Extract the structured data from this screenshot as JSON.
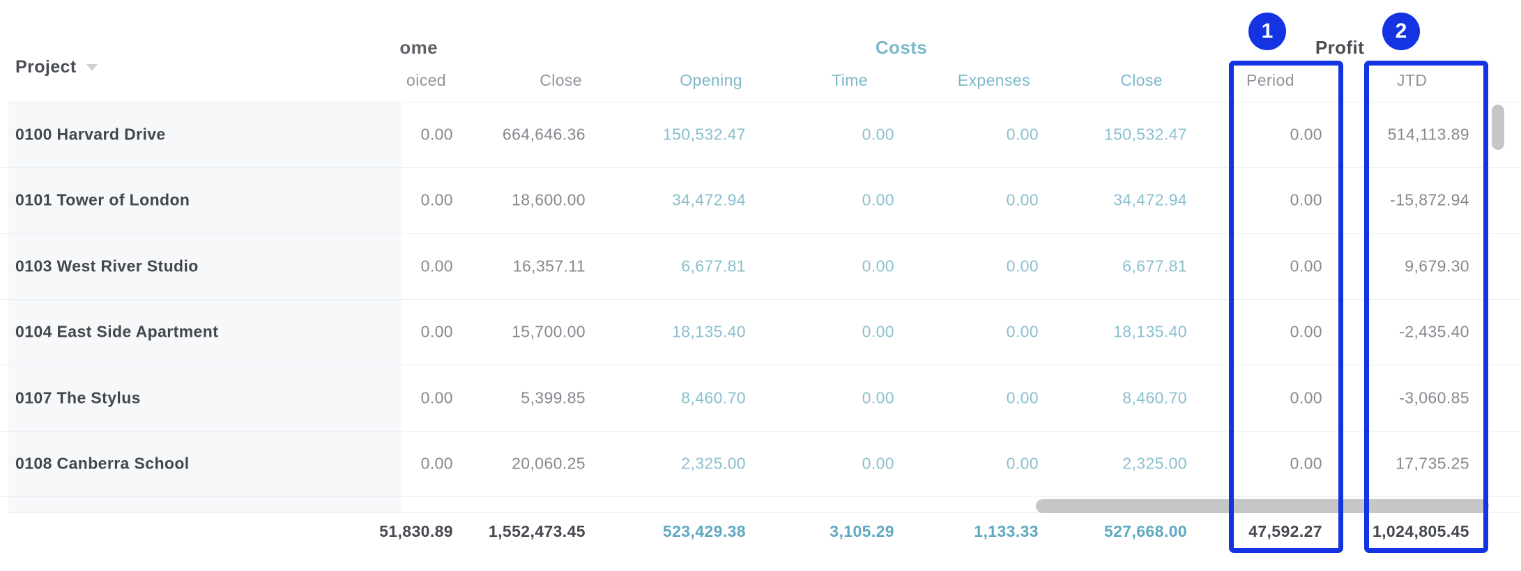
{
  "table": {
    "project_header": {
      "label": "Project",
      "filter_icon": "triangle-down"
    },
    "column_groups": {
      "income_label_clipped": "ome",
      "costs_label": "Costs",
      "profit_label": "Profit"
    },
    "sub_headers": {
      "invoiced_clipped": "oiced",
      "income_close": "Close",
      "opening": "Opening",
      "time": "Time",
      "expenses": "Expenses",
      "costs_close": "Close",
      "period": "Period",
      "jtd": "JTD"
    },
    "rows": [
      {
        "project": "0100 Harvard Drive",
        "invoiced": "0.00",
        "income_close": "664,646.36",
        "opening": "150,532.47",
        "time": "0.00",
        "expenses": "0.00",
        "costs_close": "150,532.47",
        "period": "0.00",
        "jtd": "514,113.89"
      },
      {
        "project": "0101 Tower of London",
        "invoiced": "0.00",
        "income_close": "18,600.00",
        "opening": "34,472.94",
        "time": "0.00",
        "expenses": "0.00",
        "costs_close": "34,472.94",
        "period": "0.00",
        "jtd": "-15,872.94"
      },
      {
        "project": "0103 West River Studio",
        "invoiced": "0.00",
        "income_close": "16,357.11",
        "opening": "6,677.81",
        "time": "0.00",
        "expenses": "0.00",
        "costs_close": "6,677.81",
        "period": "0.00",
        "jtd": "9,679.30"
      },
      {
        "project": "0104 East Side Apartment",
        "invoiced": "0.00",
        "income_close": "15,700.00",
        "opening": "18,135.40",
        "time": "0.00",
        "expenses": "0.00",
        "costs_close": "18,135.40",
        "period": "0.00",
        "jtd": "-2,435.40"
      },
      {
        "project": "0107 The Stylus",
        "invoiced": "0.00",
        "income_close": "5,399.85",
        "opening": "8,460.70",
        "time": "0.00",
        "expenses": "0.00",
        "costs_close": "8,460.70",
        "period": "0.00",
        "jtd": "-3,060.85"
      },
      {
        "project": "0108 Canberra School",
        "invoiced": "0.00",
        "income_close": "20,060.25",
        "opening": "2,325.00",
        "time": "0.00",
        "expenses": "0.00",
        "costs_close": "2,325.00",
        "period": "0.00",
        "jtd": "17,735.25"
      }
    ],
    "totals": {
      "invoiced": "51,830.89",
      "income_close": "1,552,473.45",
      "opening": "523,429.38",
      "time": "3,105.29",
      "expenses": "1,133.33",
      "costs_close": "527,668.00",
      "period": "47,592.27",
      "jtd": "1,024,805.45"
    }
  },
  "annotations": {
    "badge1": "1",
    "badge2": "2",
    "highlighted_columns": [
      "Period",
      "JTD"
    ]
  },
  "colors": {
    "annotation_blue": "#1434e4",
    "teal_header": "#7cb8ca",
    "teal_value": "#8abfce",
    "teal_total": "#5fa9c1",
    "gray_value": "#85898f",
    "dark_text": "#45494f",
    "panel_bg": "#f6f8fa",
    "separator": "#e9eef4",
    "scrollbar": "#c6c6c6"
  }
}
